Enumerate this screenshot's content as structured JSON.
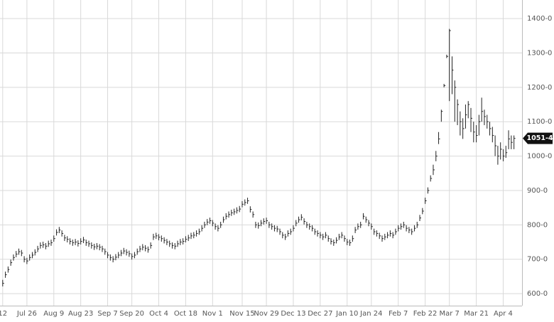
{
  "chart_data": {
    "type": "ohlc",
    "xlim": [
      -1,
      193
    ],
    "ylim": [
      565,
      1454
    ],
    "grid": true,
    "color": "#222222",
    "xticks": [
      {
        "value": 0,
        "label": "12"
      },
      {
        "value": 9,
        "label": "Jul 26"
      },
      {
        "value": 19,
        "label": "Aug 9"
      },
      {
        "value": 29,
        "label": "Aug 23"
      },
      {
        "value": 39,
        "label": "Sep 7"
      },
      {
        "value": 48,
        "label": "Sep 20"
      },
      {
        "value": 58,
        "label": "Oct 4"
      },
      {
        "value": 68,
        "label": "Oct 18"
      },
      {
        "value": 78,
        "label": "Nov 1"
      },
      {
        "value": 89,
        "label": "Nov 15"
      },
      {
        "value": 98,
        "label": "Nov 29"
      },
      {
        "value": 108,
        "label": "Dec 13"
      },
      {
        "value": 118,
        "label": "Dec 27"
      },
      {
        "value": 128,
        "label": "Jan 10"
      },
      {
        "value": 137,
        "label": "Jan 24"
      },
      {
        "value": 147,
        "label": "Feb 7"
      },
      {
        "value": 157,
        "label": "Feb 22"
      },
      {
        "value": 166,
        "label": "Mar 7"
      },
      {
        "value": 176,
        "label": "Mar 21"
      },
      {
        "value": 186,
        "label": "Apr 4"
      }
    ],
    "yticks": [
      {
        "value": 600,
        "label": "600-0"
      },
      {
        "value": 700,
        "label": "700-0"
      },
      {
        "value": 800,
        "label": "800-0"
      },
      {
        "value": 900,
        "label": "900-0"
      },
      {
        "value": 1000,
        "label": "1000-0"
      },
      {
        "value": 1100,
        "label": "1100-0"
      },
      {
        "value": 1200,
        "label": "1200-0"
      },
      {
        "value": 1300,
        "label": "1300-0"
      },
      {
        "value": 1400,
        "label": "1400-0"
      }
    ],
    "last": {
      "value": 1051.5,
      "label": "1051-4"
    },
    "close": [
      630,
      655,
      670,
      690,
      705,
      715,
      722,
      718,
      700,
      695,
      705,
      712,
      720,
      730,
      740,
      742,
      738,
      745,
      748,
      760,
      778,
      785,
      775,
      762,
      758,
      752,
      748,
      750,
      746,
      752,
      756,
      748,
      745,
      740,
      736,
      738,
      735,
      730,
      722,
      712,
      705,
      700,
      706,
      712,
      718,
      724,
      720,
      716,
      708,
      712,
      722,
      730,
      735,
      732,
      728,
      740,
      765,
      768,
      764,
      760,
      755,
      750,
      745,
      740,
      738,
      745,
      750,
      752,
      758,
      762,
      768,
      770,
      775,
      780,
      790,
      800,
      808,
      812,
      805,
      795,
      790,
      800,
      815,
      825,
      830,
      835,
      838,
      842,
      846,
      860,
      865,
      870,
      845,
      830,
      800,
      798,
      805,
      810,
      812,
      800,
      795,
      790,
      788,
      780,
      770,
      765,
      775,
      780,
      790,
      805,
      815,
      822,
      810,
      800,
      795,
      790,
      780,
      775,
      770,
      765,
      770,
      760,
      752,
      748,
      755,
      765,
      770,
      760,
      750,
      748,
      760,
      785,
      795,
      800,
      825,
      815,
      805,
      795,
      780,
      775,
      768,
      760,
      765,
      770,
      775,
      770,
      780,
      790,
      795,
      800,
      790,
      785,
      780,
      790,
      800,
      820,
      840,
      870,
      900,
      935,
      960,
      1000,
      1050,
      1130,
      1205,
      1290,
      1365,
      1250,
      1200,
      1150,
      1100,
      1080,
      1120,
      1150,
      1110,
      1070,
      1060,
      1100,
      1130,
      1115,
      1100,
      1080,
      1060,
      1030,
      1000,
      1020,
      1000,
      1010,
      1050,
      1040,
      1051.5
    ],
    "high": [
      640,
      664,
      679,
      699,
      714,
      724,
      731,
      727,
      709,
      704,
      714,
      721,
      729,
      739,
      749,
      751,
      747,
      754,
      757,
      769,
      787,
      794,
      784,
      771,
      767,
      761,
      757,
      759,
      755,
      761,
      765,
      757,
      754,
      749,
      745,
      747,
      744,
      739,
      731,
      721,
      714,
      709,
      715,
      721,
      727,
      733,
      729,
      725,
      717,
      721,
      731,
      739,
      744,
      741,
      737,
      749,
      774,
      777,
      773,
      769,
      764,
      759,
      754,
      749,
      747,
      754,
      759,
      761,
      767,
      771,
      777,
      779,
      784,
      789,
      799,
      809,
      817,
      821,
      814,
      804,
      799,
      809,
      824,
      834,
      839,
      844,
      847,
      851,
      855,
      869,
      874,
      879,
      854,
      839,
      809,
      807,
      814,
      819,
      821,
      809,
      804,
      799,
      797,
      789,
      779,
      774,
      784,
      789,
      799,
      814,
      824,
      831,
      819,
      809,
      804,
      799,
      789,
      784,
      779,
      774,
      779,
      769,
      761,
      757,
      764,
      774,
      779,
      769,
      759,
      757,
      769,
      794,
      804,
      809,
      834,
      824,
      814,
      804,
      789,
      784,
      777,
      769,
      774,
      779,
      784,
      779,
      789,
      799,
      804,
      809,
      799,
      794,
      789,
      799,
      809,
      829,
      849,
      879,
      909,
      944,
      975,
      1015,
      1070,
      1135,
      1210,
      1295,
      1370,
      1290,
      1220,
      1165,
      1130,
      1110,
      1150,
      1160,
      1140,
      1100,
      1090,
      1120,
      1170,
      1135,
      1120,
      1100,
      1085,
      1060,
      1030,
      1040,
      1020,
      1030,
      1075,
      1060,
      1060
    ],
    "low": [
      621,
      646,
      661,
      681,
      696,
      706,
      713,
      709,
      691,
      686,
      696,
      703,
      711,
      721,
      731,
      733,
      729,
      736,
      739,
      751,
      769,
      776,
      766,
      753,
      749,
      743,
      739,
      741,
      737,
      743,
      747,
      739,
      736,
      731,
      727,
      729,
      726,
      721,
      713,
      703,
      696,
      691,
      697,
      703,
      709,
      715,
      711,
      707,
      699,
      703,
      713,
      721,
      726,
      723,
      719,
      731,
      756,
      759,
      755,
      751,
      746,
      741,
      736,
      731,
      729,
      736,
      741,
      743,
      749,
      753,
      759,
      761,
      766,
      771,
      781,
      791,
      799,
      803,
      796,
      786,
      781,
      791,
      806,
      816,
      821,
      826,
      829,
      833,
      837,
      851,
      856,
      861,
      836,
      821,
      791,
      789,
      796,
      801,
      803,
      791,
      786,
      781,
      779,
      771,
      761,
      756,
      766,
      771,
      781,
      796,
      806,
      813,
      801,
      791,
      786,
      781,
      771,
      766,
      761,
      756,
      761,
      751,
      743,
      739,
      746,
      756,
      761,
      751,
      741,
      739,
      751,
      776,
      786,
      791,
      816,
      806,
      796,
      786,
      771,
      766,
      759,
      751,
      756,
      761,
      766,
      761,
      771,
      781,
      786,
      791,
      781,
      776,
      771,
      781,
      791,
      811,
      831,
      861,
      891,
      926,
      945,
      985,
      1035,
      1100,
      1200,
      1285,
      1160,
      1180,
      1100,
      1090,
      1060,
      1050,
      1080,
      1110,
      1070,
      1040,
      1040,
      1060,
      1100,
      1090,
      1080,
      1060,
      1040,
      1000,
      975,
      990,
      985,
      995,
      1020,
      1020,
      1020
    ]
  }
}
